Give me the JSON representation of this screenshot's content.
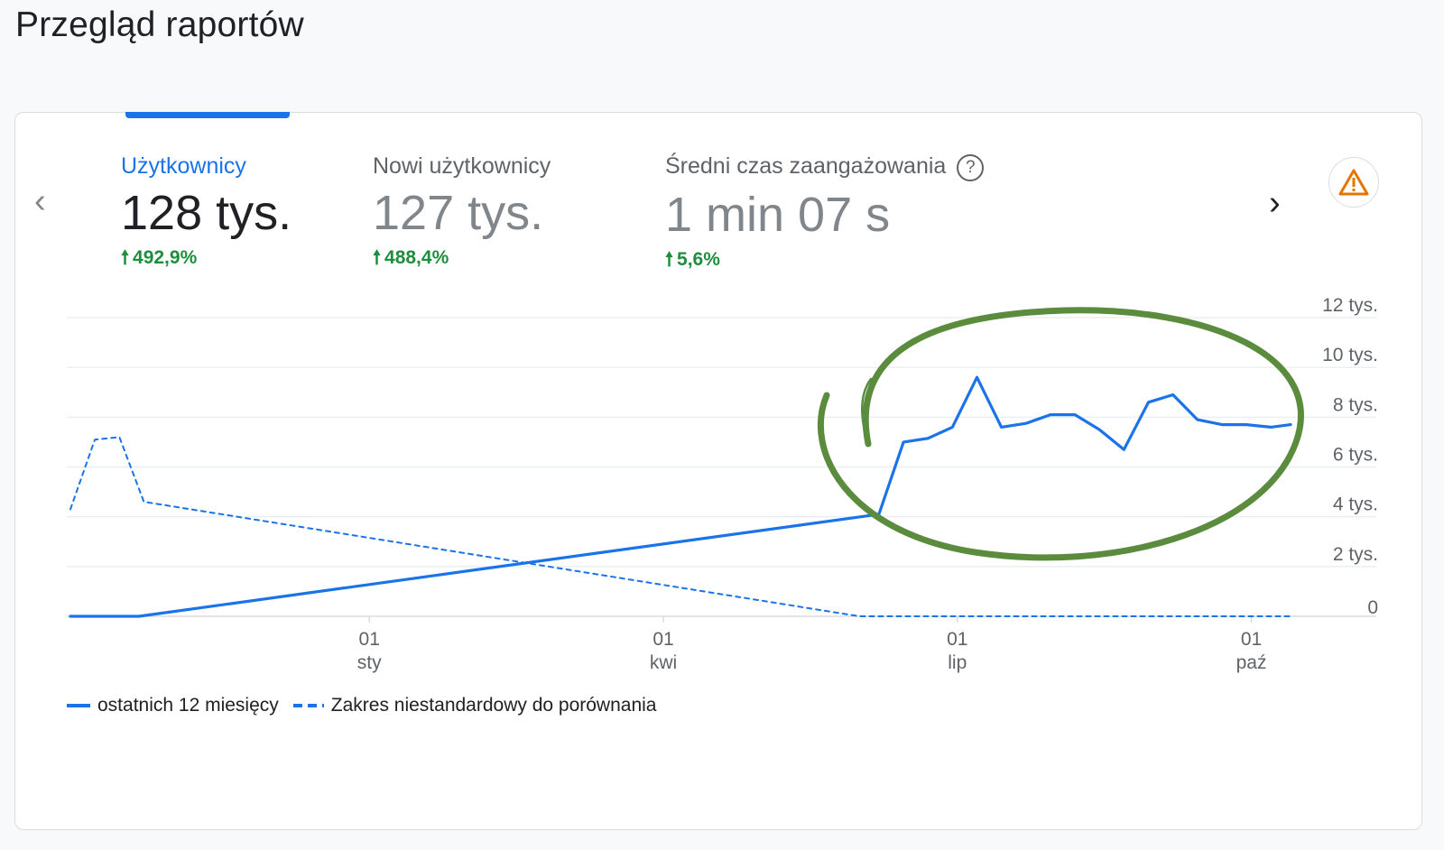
{
  "page": {
    "title": "Przegląd raportów"
  },
  "nav": {
    "prev_icon": "chevron-left-icon",
    "next_icon": "chevron-right-icon",
    "prev_glyph": "‹",
    "next_glyph": "›"
  },
  "metrics": [
    {
      "label": "Użytkownicy",
      "value": "128 tys.",
      "change": "492,9%",
      "active": true
    },
    {
      "label": "Nowi użytkownicy",
      "value": "127 tys.",
      "change": "488,4%",
      "active": false
    },
    {
      "label": "Średni czas zaangażowania",
      "value": "1 min 07 s",
      "change": "5,6%",
      "active": false,
      "help_icon": "?"
    }
  ],
  "change_arrow": "🠕",
  "warning_icon": "warning-triangle-icon",
  "colors": {
    "accent": "#1a73e8",
    "positive": "#1e8e3e",
    "warning": "#e37400",
    "annotation": "#5b8c3e"
  },
  "chart_data": {
    "type": "line",
    "y_tick_labels": [
      "0",
      "2 tys.",
      "4 tys.",
      "6 tys.",
      "8 tys.",
      "10 tys.",
      "12 tys."
    ],
    "y_ticks": [
      0,
      2000,
      4000,
      6000,
      8000,
      10000,
      12000
    ],
    "ylim": [
      0,
      12000
    ],
    "x_tick_labels": [
      {
        "day": "01",
        "month": "sty",
        "x": 2
      },
      {
        "day": "01",
        "month": "kwi",
        "x": 5
      },
      {
        "day": "01",
        "month": "lip",
        "x": 8
      },
      {
        "day": "01",
        "month": "paź",
        "x": 11
      }
    ],
    "xlim": [
      -1.05,
      11.4
    ],
    "grid": true,
    "legend": "bottom-left",
    "series": [
      {
        "name": "ostatnich 12 miesięcy",
        "style": "solid",
        "points": [
          [
            -1.05,
            0
          ],
          [
            -0.35,
            0
          ],
          [
            7.2,
            4100
          ],
          [
            7.45,
            7000
          ],
          [
            7.7,
            7150
          ],
          [
            7.95,
            7600
          ],
          [
            8.2,
            9600
          ],
          [
            8.45,
            7600
          ],
          [
            8.7,
            7750
          ],
          [
            8.95,
            8100
          ],
          [
            9.2,
            8100
          ],
          [
            9.45,
            7500
          ],
          [
            9.7,
            6700
          ],
          [
            9.95,
            8600
          ],
          [
            10.2,
            8900
          ],
          [
            10.45,
            7900
          ],
          [
            10.7,
            7700
          ],
          [
            10.95,
            7700
          ],
          [
            11.2,
            7600
          ],
          [
            11.4,
            7700
          ]
        ]
      },
      {
        "name": "Zakres niestandardowy do porównania",
        "style": "dashed",
        "points": [
          [
            -1.05,
            4300
          ],
          [
            -0.8,
            7100
          ],
          [
            -0.55,
            7200
          ],
          [
            -0.3,
            4600
          ],
          [
            7.0,
            0
          ],
          [
            11.4,
            0
          ]
        ]
      }
    ]
  }
}
